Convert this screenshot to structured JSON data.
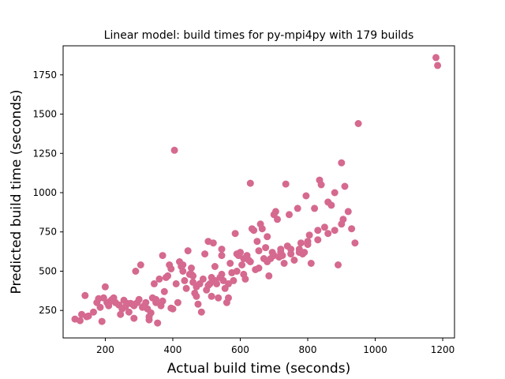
{
  "chart_data": {
    "type": "scatter",
    "title": "Linear model: build times for py-mpi4py with 179 builds",
    "xlabel": "Actual build time (seconds)",
    "ylabel": "Predicted build time (seconds)",
    "xlim": [
      75,
      1235
    ],
    "ylim": [
      75,
      1935
    ],
    "xticks": [
      200,
      400,
      600,
      800,
      1000,
      1200
    ],
    "yticks": [
      250,
      500,
      750,
      1000,
      1250,
      1500,
      1750
    ],
    "grid": false,
    "point_color": "#d5698f",
    "series": [
      {
        "points": [
          [
            110,
            195
          ],
          [
            125,
            185
          ],
          [
            130,
            225
          ],
          [
            140,
            345
          ],
          [
            150,
            215
          ],
          [
            175,
            300
          ],
          [
            180,
            325
          ],
          [
            185,
            270
          ],
          [
            190,
            180
          ],
          [
            195,
            330
          ],
          [
            200,
            400
          ],
          [
            205,
            300
          ],
          [
            210,
            280
          ],
          [
            215,
            310
          ],
          [
            220,
            320
          ],
          [
            230,
            300
          ],
          [
            240,
            285
          ],
          [
            245,
            225
          ],
          [
            250,
            260
          ],
          [
            255,
            315
          ],
          [
            260,
            275
          ],
          [
            270,
            240
          ],
          [
            275,
            295
          ],
          [
            280,
            290
          ],
          [
            285,
            280
          ],
          [
            290,
            500
          ],
          [
            295,
            300
          ],
          [
            300,
            320
          ],
          [
            305,
            540
          ],
          [
            310,
            270
          ],
          [
            320,
            300
          ],
          [
            325,
            260
          ],
          [
            330,
            190
          ],
          [
            335,
            235
          ],
          [
            340,
            330
          ],
          [
            345,
            420
          ],
          [
            350,
            320
          ],
          [
            355,
            170
          ],
          [
            360,
            450
          ],
          [
            365,
            280
          ],
          [
            370,
            310
          ],
          [
            375,
            370
          ],
          [
            380,
            460
          ],
          [
            385,
            470
          ],
          [
            390,
            540
          ],
          [
            395,
            265
          ],
          [
            400,
            260
          ],
          [
            405,
            1270
          ],
          [
            410,
            420
          ],
          [
            415,
            300
          ],
          [
            420,
            560
          ],
          [
            425,
            530
          ],
          [
            430,
            500
          ],
          [
            435,
            440
          ],
          [
            440,
            390
          ],
          [
            445,
            630
          ],
          [
            450,
            480
          ],
          [
            455,
            520
          ],
          [
            460,
            430
          ],
          [
            465,
            360
          ],
          [
            470,
            400
          ],
          [
            475,
            290
          ],
          [
            480,
            420
          ],
          [
            485,
            240
          ],
          [
            490,
            450
          ],
          [
            495,
            610
          ],
          [
            500,
            380
          ],
          [
            505,
            690
          ],
          [
            510,
            420
          ],
          [
            515,
            340
          ],
          [
            520,
            680
          ],
          [
            525,
            440
          ],
          [
            530,
            420
          ],
          [
            535,
            330
          ],
          [
            540,
            460
          ],
          [
            545,
            480
          ],
          [
            550,
            440
          ],
          [
            555,
            390
          ],
          [
            560,
            300
          ],
          [
            565,
            330
          ],
          [
            570,
            550
          ],
          [
            575,
            490
          ],
          [
            580,
            440
          ],
          [
            585,
            740
          ],
          [
            590,
            610
          ],
          [
            595,
            600
          ],
          [
            600,
            620
          ],
          [
            605,
            540
          ],
          [
            610,
            580
          ],
          [
            615,
            450
          ],
          [
            620,
            600
          ],
          [
            625,
            570
          ],
          [
            630,
            1060
          ],
          [
            635,
            770
          ],
          [
            640,
            760
          ],
          [
            645,
            510
          ],
          [
            650,
            690
          ],
          [
            655,
            630
          ],
          [
            660,
            800
          ],
          [
            665,
            770
          ],
          [
            670,
            580
          ],
          [
            675,
            650
          ],
          [
            680,
            720
          ],
          [
            685,
            470
          ],
          [
            690,
            580
          ],
          [
            695,
            620
          ],
          [
            700,
            860
          ],
          [
            705,
            880
          ],
          [
            710,
            830
          ],
          [
            715,
            590
          ],
          [
            720,
            640
          ],
          [
            725,
            600
          ],
          [
            730,
            550
          ],
          [
            735,
            1055
          ],
          [
            740,
            660
          ],
          [
            745,
            860
          ],
          [
            750,
            610
          ],
          [
            760,
            570
          ],
          [
            770,
            900
          ],
          [
            775,
            640
          ],
          [
            780,
            680
          ],
          [
            785,
            610
          ],
          [
            790,
            620
          ],
          [
            795,
            980
          ],
          [
            800,
            690
          ],
          [
            805,
            730
          ],
          [
            810,
            550
          ],
          [
            820,
            900
          ],
          [
            830,
            760
          ],
          [
            835,
            1080
          ],
          [
            840,
            1050
          ],
          [
            850,
            780
          ],
          [
            860,
            940
          ],
          [
            870,
            920
          ],
          [
            880,
            1000
          ],
          [
            890,
            540
          ],
          [
            900,
            1190
          ],
          [
            905,
            830
          ],
          [
            910,
            1040
          ],
          [
            920,
            880
          ],
          [
            930,
            770
          ],
          [
            940,
            680
          ],
          [
            950,
            1440
          ],
          [
            1180,
            1860
          ],
          [
            1185,
            1810
          ],
          [
            145,
            210
          ],
          [
            165,
            240
          ],
          [
            225,
            330
          ],
          [
            265,
            295
          ],
          [
            285,
            200
          ],
          [
            315,
            280
          ],
          [
            330,
            210
          ],
          [
            350,
            300
          ],
          [
            370,
            600
          ],
          [
            395,
            515
          ],
          [
            430,
            540
          ],
          [
            455,
            480
          ],
          [
            470,
            340
          ],
          [
            505,
            410
          ],
          [
            525,
            530
          ],
          [
            545,
            600
          ],
          [
            565,
            420
          ],
          [
            590,
            500
          ],
          [
            610,
            480
          ],
          [
            630,
            560
          ],
          [
            655,
            520
          ],
          [
            680,
            560
          ],
          [
            700,
            600
          ],
          [
            720,
            620
          ],
          [
            750,
            640
          ],
          [
            775,
            620
          ],
          [
            800,
            670
          ],
          [
            830,
            700
          ],
          [
            860,
            740
          ],
          [
            880,
            760
          ],
          [
            900,
            800
          ],
          [
            460,
            470
          ],
          [
            515,
            460
          ],
          [
            545,
            640
          ]
        ]
      }
    ]
  }
}
